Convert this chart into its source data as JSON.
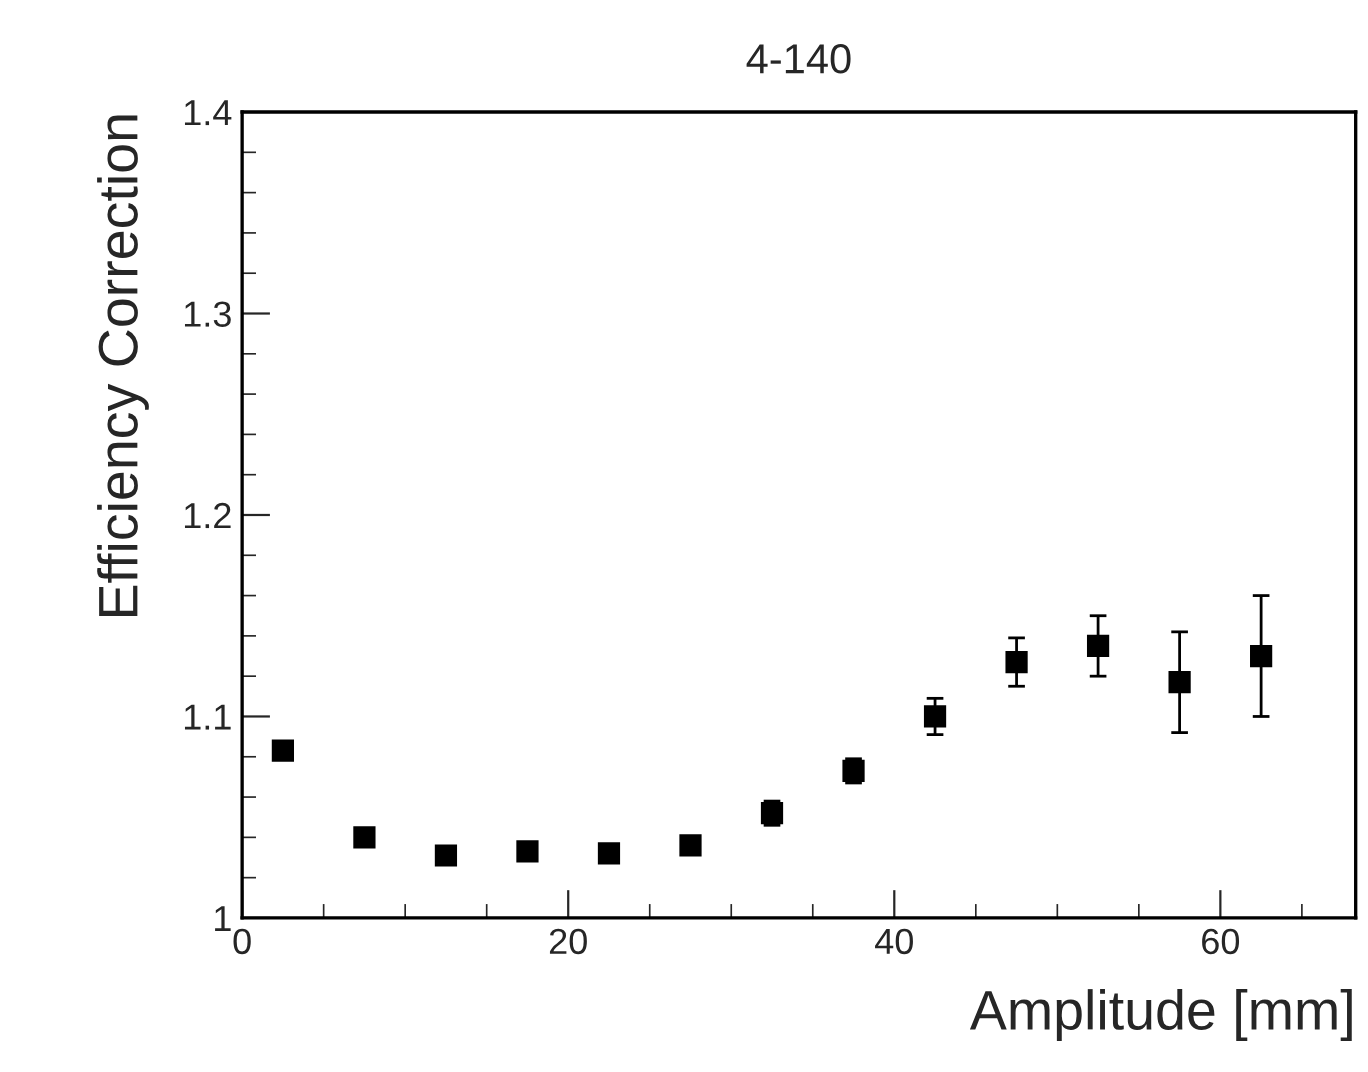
{
  "chart_data": {
    "type": "scatter",
    "title": "4-140",
    "xlabel": "Amplitude [mm]",
    "ylabel": "Efficiency Correction",
    "x": [
      2.5,
      7.5,
      12.5,
      17.5,
      22.5,
      27.5,
      32.5,
      37.5,
      42.5,
      47.5,
      52.5,
      57.5,
      62.5
    ],
    "values": [
      1.083,
      1.04,
      1.031,
      1.033,
      1.032,
      1.036,
      1.052,
      1.073,
      1.1,
      1.127,
      1.135,
      1.117,
      1.13
    ],
    "errors": [
      null,
      null,
      null,
      null,
      null,
      null,
      0.006,
      0.006,
      0.009,
      0.012,
      0.015,
      0.025,
      0.03
    ],
    "color": "#000000",
    "marker": "square",
    "xlim": [
      0,
      68.3
    ],
    "xticks": [
      0,
      20,
      40,
      60
    ],
    "ylim": [
      1,
      1.4
    ],
    "yticks": [
      {
        "value": 1,
        "label": "1"
      },
      1.1,
      1.2,
      1.3,
      1.4
    ],
    "grid": false,
    "legend": false
  }
}
